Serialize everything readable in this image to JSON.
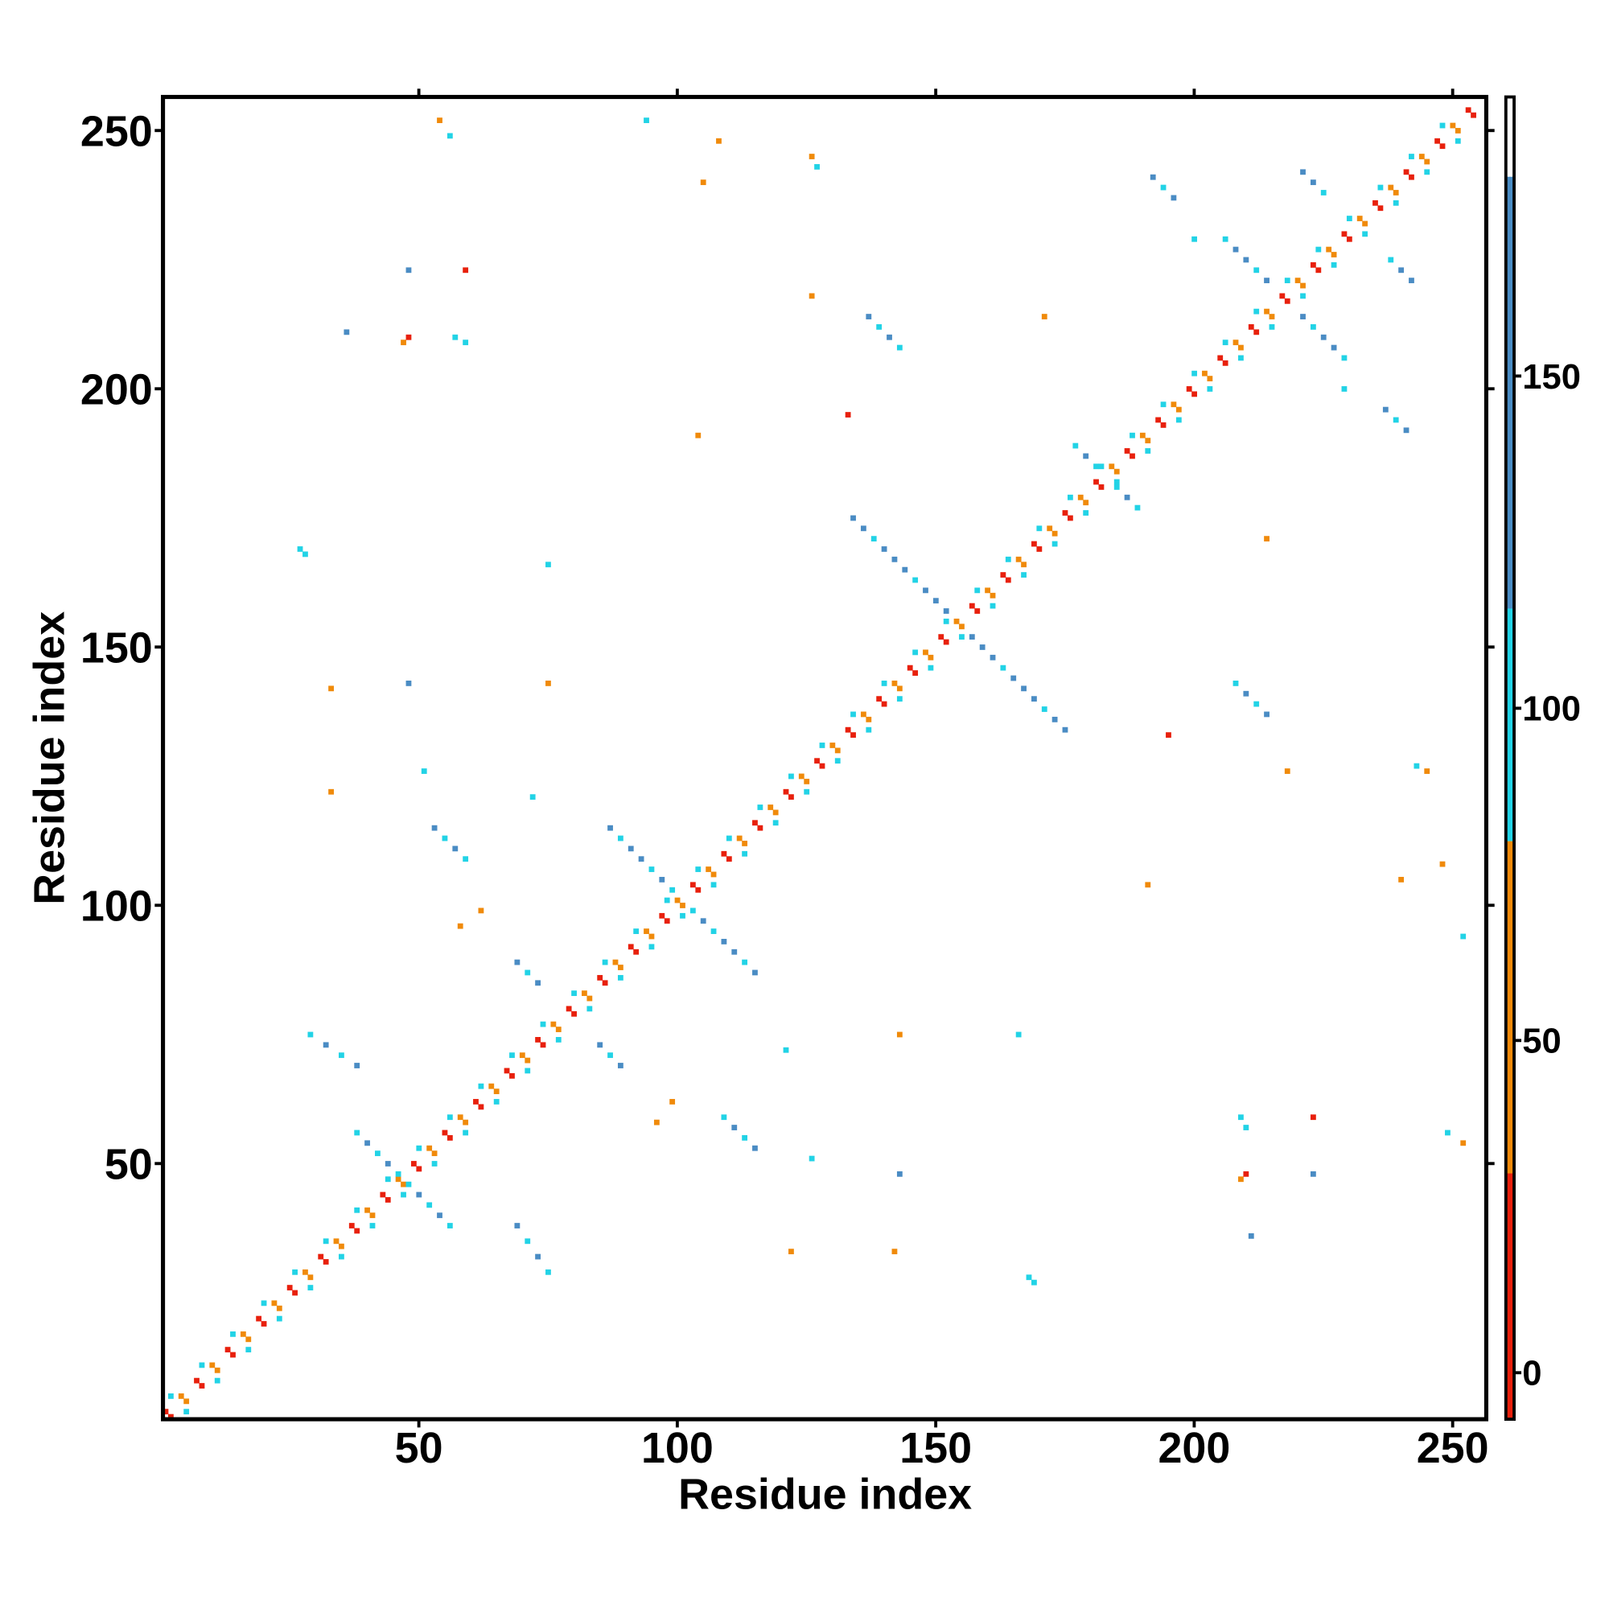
{
  "chart_data": {
    "type": "heatmap",
    "x_label": "Residue index",
    "y_label": "Residue index",
    "xlim": [
      0.5,
      256.5
    ],
    "ylim": [
      0.5,
      256.5
    ],
    "xticks": [
      50,
      100,
      150,
      200,
      250
    ],
    "yticks": [
      50,
      100,
      150,
      200,
      250
    ],
    "symmetric": true,
    "colorbar_lim": [
      -7,
      192
    ],
    "colorbar_ticks": [
      0,
      50,
      100,
      150
    ],
    "color_bins": [
      {
        "from": -7,
        "to": 30,
        "color": "#e8200c"
      },
      {
        "from": 30,
        "to": 80,
        "color": "#f08a0a"
      },
      {
        "from": 80,
        "to": 115,
        "color": "#22d3e6"
      },
      {
        "from": 115,
        "to": 180,
        "color": "#4a8cc4"
      },
      {
        "from": 180,
        "to": 192,
        "color": "#ffffff"
      }
    ],
    "x": [
      1,
      4,
      7,
      10,
      13,
      16,
      19,
      22,
      25,
      28,
      31,
      34,
      37,
      40,
      43,
      46,
      49,
      52,
      55,
      58,
      61,
      64,
      67,
      70,
      73,
      76,
      79,
      82,
      85,
      88,
      91,
      94,
      97,
      100,
      103,
      106,
      109,
      112,
      115,
      118,
      121,
      124,
      127,
      130,
      133,
      136,
      139,
      142,
      145,
      148,
      151,
      154,
      157,
      160,
      163,
      166,
      169,
      172,
      175,
      178,
      181,
      184,
      187,
      190,
      193,
      196,
      199,
      202,
      205,
      208,
      211,
      214,
      217,
      220,
      223,
      226,
      229,
      232,
      235,
      238,
      241,
      244,
      247,
      250,
      253,
      2,
      8,
      14,
      20,
      26,
      32,
      38,
      44,
      50,
      56,
      62,
      68,
      74,
      80,
      86,
      92,
      98,
      104,
      110,
      116,
      122,
      128,
      134,
      140,
      146,
      152,
      158,
      164,
      170,
      176,
      182,
      188,
      194,
      200,
      206,
      212,
      218,
      224,
      230,
      236,
      242,
      248,
      87,
      89,
      91,
      93,
      95,
      97,
      99,
      38,
      40,
      42,
      44,
      46,
      134,
      136,
      138,
      140,
      142,
      144,
      146,
      148,
      150,
      152,
      206,
      208,
      210,
      212,
      214,
      177,
      179,
      181,
      137,
      139,
      141,
      143,
      192,
      194,
      196,
      221,
      223,
      225,
      47,
      48,
      57,
      59,
      27,
      28,
      75,
      36,
      48,
      59,
      105,
      108,
      127,
      126,
      126,
      104,
      133,
      171,
      200,
      54,
      56,
      94,
      33,
      51,
      72,
      53,
      55,
      57,
      59,
      69,
      71,
      73,
      29,
      32,
      35,
      38,
      33,
      48,
      75,
      58,
      62
    ],
    "y": [
      2,
      5,
      8,
      11,
      14,
      17,
      20,
      23,
      26,
      29,
      32,
      35,
      38,
      41,
      44,
      47,
      50,
      53,
      56,
      59,
      62,
      65,
      68,
      71,
      74,
      77,
      80,
      83,
      86,
      89,
      92,
      95,
      98,
      101,
      104,
      107,
      110,
      113,
      116,
      119,
      122,
      125,
      128,
      131,
      134,
      137,
      140,
      143,
      146,
      149,
      152,
      155,
      158,
      161,
      164,
      167,
      170,
      173,
      176,
      179,
      182,
      185,
      188,
      191,
      194,
      197,
      200,
      203,
      206,
      209,
      212,
      215,
      218,
      221,
      224,
      227,
      230,
      233,
      236,
      239,
      242,
      245,
      248,
      251,
      254,
      5,
      11,
      17,
      23,
      29,
      35,
      41,
      47,
      53,
      59,
      65,
      71,
      77,
      83,
      89,
      95,
      101,
      107,
      113,
      119,
      125,
      131,
      137,
      143,
      149,
      155,
      161,
      167,
      173,
      179,
      185,
      191,
      197,
      203,
      209,
      215,
      221,
      227,
      233,
      239,
      245,
      251,
      115,
      113,
      111,
      109,
      107,
      105,
      103,
      56,
      54,
      52,
      50,
      48,
      175,
      173,
      171,
      169,
      167,
      165,
      163,
      161,
      159,
      157,
      229,
      227,
      225,
      223,
      221,
      189,
      187,
      185,
      214,
      212,
      210,
      208,
      241,
      239,
      237,
      242,
      240,
      238,
      209,
      210,
      210,
      209,
      169,
      168,
      166,
      211,
      223,
      223,
      240,
      248,
      243,
      245,
      218,
      191,
      195,
      214,
      229,
      252,
      249,
      252,
      122,
      126,
      121,
      115,
      113,
      111,
      109,
      89,
      87,
      85,
      75,
      73,
      71,
      69,
      142,
      143,
      143,
      96,
      99
    ],
    "values": [
      10,
      45,
      10,
      45,
      10,
      45,
      10,
      45,
      10,
      45,
      10,
      45,
      10,
      45,
      10,
      45,
      10,
      45,
      10,
      45,
      10,
      45,
      10,
      45,
      10,
      45,
      10,
      45,
      10,
      45,
      10,
      45,
      10,
      45,
      10,
      45,
      10,
      45,
      10,
      45,
      10,
      45,
      10,
      45,
      10,
      45,
      10,
      45,
      10,
      45,
      10,
      45,
      10,
      45,
      10,
      45,
      10,
      45,
      10,
      45,
      10,
      45,
      10,
      45,
      10,
      45,
      10,
      45,
      10,
      45,
      10,
      45,
      10,
      45,
      10,
      45,
      10,
      45,
      10,
      45,
      10,
      45,
      10,
      45,
      10,
      95,
      95,
      95,
      95,
      95,
      95,
      95,
      95,
      95,
      95,
      95,
      95,
      95,
      95,
      95,
      95,
      95,
      95,
      95,
      95,
      95,
      95,
      95,
      95,
      95,
      95,
      95,
      95,
      95,
      95,
      95,
      95,
      95,
      95,
      95,
      95,
      95,
      95,
      95,
      95,
      95,
      95,
      130,
      95,
      130,
      130,
      95,
      130,
      95,
      95,
      130,
      95,
      130,
      95,
      130,
      130,
      95,
      130,
      130,
      130,
      95,
      130,
      130,
      130,
      95,
      130,
      130,
      95,
      130,
      95,
      130,
      95,
      130,
      95,
      130,
      95,
      130,
      95,
      130,
      130,
      130,
      95,
      45,
      20,
      95,
      95,
      95,
      95,
      95,
      130,
      130,
      20,
      60,
      60,
      95,
      60,
      60,
      60,
      10,
      60,
      95,
      60,
      95,
      95,
      45,
      95,
      95,
      130,
      95,
      130,
      95,
      130,
      95,
      130,
      95,
      130,
      95,
      130,
      45,
      130,
      60,
      45,
      45
    ]
  }
}
